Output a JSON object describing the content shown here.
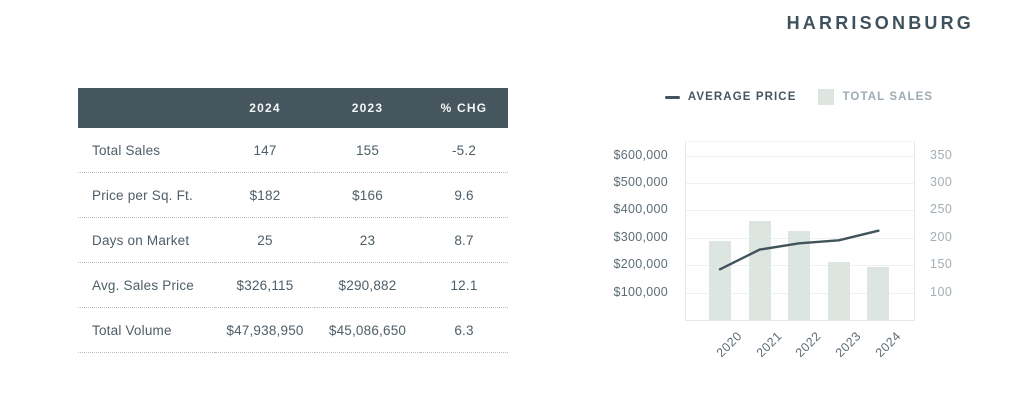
{
  "title": "HARRISONBURG",
  "table": {
    "columns": [
      "",
      "2024",
      "2023",
      "% CHG"
    ],
    "rows": [
      {
        "label": "Total Sales",
        "y2024": "147",
        "y2023": "155",
        "chg": "-5.2"
      },
      {
        "label": "Price per Sq. Ft.",
        "y2024": "$182",
        "y2023": "$166",
        "chg": "9.6"
      },
      {
        "label": "Days on Market",
        "y2024": "25",
        "y2023": "23",
        "chg": "8.7"
      },
      {
        "label": "Avg. Sales Price",
        "y2024": "$326,115",
        "y2023": "$290,882",
        "chg": "12.1"
      },
      {
        "label": "Total Volume",
        "y2024": "$47,938,950",
        "y2023": "$45,086,650",
        "chg": "6.3"
      }
    ]
  },
  "chart_data": {
    "type": "combo",
    "title": "",
    "categories": [
      "2020",
      "2021",
      "2022",
      "2023",
      "2024"
    ],
    "series": [
      {
        "name": "AVERAGE PRICE",
        "type": "line",
        "axis": "left",
        "values": [
          185000,
          257000,
          280000,
          290882,
          326115
        ]
      },
      {
        "name": "TOTAL SALES",
        "type": "bar",
        "axis": "right",
        "values": [
          195,
          230,
          212,
          155,
          147
        ]
      }
    ],
    "left_axis": {
      "ticks": [
        "$600,000",
        "$500,000",
        "$400,000",
        "$300,000",
        "$200,000",
        "$100,000"
      ],
      "tick_values": [
        600000,
        500000,
        400000,
        300000,
        200000,
        100000
      ],
      "min": 0,
      "max": 650000
    },
    "right_axis": {
      "ticks": [
        "350",
        "300",
        "250",
        "200",
        "150",
        "100"
      ],
      "tick_values": [
        350,
        300,
        250,
        200,
        150,
        100
      ],
      "min": 50,
      "max": 375
    },
    "legend_position": "top",
    "grid": true
  },
  "colors": {
    "title_text": "#3f515c",
    "table_header_bg": "#46565f",
    "table_header_text": "#f4f6f6",
    "table_body_text": "#4e5e67",
    "separator_dotted": "#b8bfc3",
    "bar_fill": "#dde5e1",
    "line_stroke": "#42535c",
    "gridline": "#eef0f1",
    "left_tick_text": "#5d6d75",
    "right_tick_text": "#a3aeb4"
  }
}
